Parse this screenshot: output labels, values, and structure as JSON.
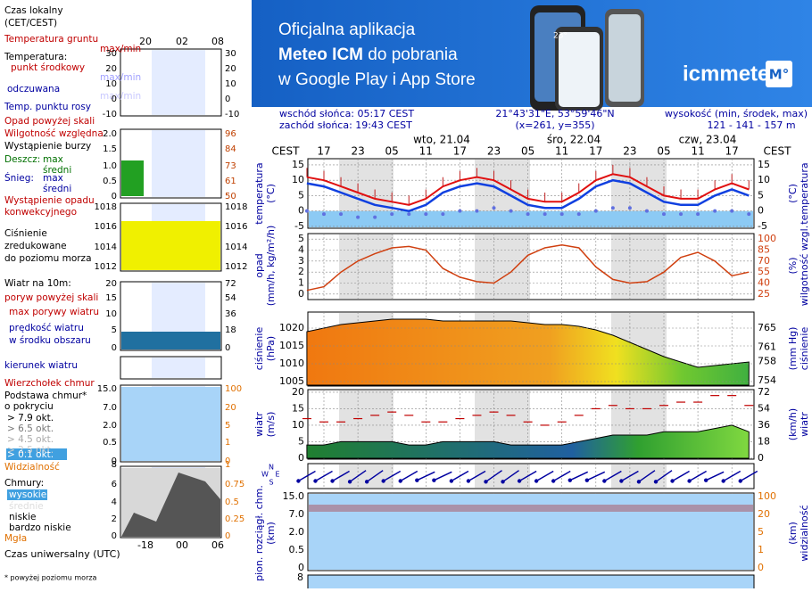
{
  "banner": {
    "line1": "Oficjalna aplikacja",
    "line2_bold": "Meteo ICM",
    "line2_rest": " do pobrania",
    "line3": "w Google Play i App Store",
    "logo": "icmmeteo",
    "badge": "M°",
    "phone_text": "23°"
  },
  "info": {
    "sunrise": "wschód słońca: 05:17 CEST",
    "sunset": "zachód słońca: 19:43 CEST",
    "coords": "21°43'31\"E, 53°59'46\"N",
    "grid": "(x=261, y=355)",
    "elevation_label": "wysokość (min, środek, max)",
    "elevation": "121 - 141 - 157 m"
  },
  "legend": {
    "items": [
      "Czas lokalny",
      "(CET/CEST)",
      "Temperatura gruntu",
      "max/min",
      "Temperatura:",
      "punkt środkowy",
      "max/min",
      "odczuwana",
      "max/min",
      "Temp. punktu rosy",
      "Opad powyżej skali",
      "Wilgotność względna",
      "Wystąpienie burzy",
      "Deszcz:",
      "max",
      "średni",
      "Śnieg:",
      "max",
      "średni",
      "Wystąpienie opadu",
      "konwekcyjnego",
      "Ciśnienie",
      "zredukowane",
      "do poziomu morza",
      "Wiatr na 10m:",
      "poryw powyżej skali",
      "max porywy wiatru",
      "prędkość wiatru",
      "w środku obszaru",
      "kierunek wiatru",
      "Wierzchołek chmur",
      "Podstawa chmur*",
      "o pokryciu",
      "> 7.9 okt.",
      "> 6.5 okt.",
      "> 4.5 okt.",
      "> 2.5 okt.",
      "> 0.1 okt.",
      "Widzialność",
      "Chmury:",
      "wysokie",
      "średnie",
      "niskie",
      "bardzo niskie",
      "Mgła",
      "Czas uniwersalny (UTC)",
      "* powyżej poziomu morza"
    ],
    "top_times": [
      "20",
      "02",
      "08"
    ],
    "bottom_times": [
      "-18",
      "00",
      "06"
    ],
    "axes": [
      {
        "left": [
          "30",
          "20",
          "10",
          "0",
          "-10"
        ],
        "right": [
          "30",
          "20",
          "10",
          "0",
          "-10"
        ]
      },
      {
        "left": [
          "2.0",
          "1.5",
          "1.0",
          "0.5",
          "0"
        ],
        "right": [
          "96",
          "84",
          "73",
          "61",
          "50"
        ]
      },
      {
        "left": [
          "1018",
          "1016",
          "1014",
          "1012"
        ],
        "right": [
          "1018",
          "1016",
          "1014",
          "1012"
        ]
      },
      {
        "left": [
          "20",
          "15",
          "10",
          "5",
          "0"
        ],
        "right": [
          "72",
          "54",
          "36",
          "18",
          "0"
        ]
      },
      {
        "left": [
          "15.0",
          "7.0",
          "2.0",
          "0.5",
          "0"
        ],
        "right": [
          "100",
          "20",
          "5",
          "1",
          "0"
        ]
      },
      {
        "left": [
          "8"
        ],
        "right": [
          "1"
        ]
      },
      {
        "left": [
          "6",
          "4",
          "2",
          "0"
        ],
        "right": [
          "0.75",
          "0.5",
          "0.25",
          "0"
        ]
      }
    ]
  },
  "meteogram": {
    "cest": "CEST",
    "time_labels": [
      "17",
      "23",
      "05",
      "11",
      "17",
      "23",
      "05",
      "11",
      "17",
      "23",
      "05",
      "11",
      "17"
    ],
    "days": [
      "wto, 21.04",
      "śro, 22.04",
      "czw, 23.04"
    ],
    "axis_labels": {
      "temp": [
        "temperatura",
        "(°C)"
      ],
      "temp_r": [
        "(°C)",
        "temperatura"
      ],
      "precip": [
        "opad",
        "(mm/h, kg/m²/h)"
      ],
      "hum": [
        "(%)",
        "wilgotność wzgl."
      ],
      "press": [
        "ciśnienie",
        "(hPa)"
      ],
      "press_r": [
        "(mm Hg)",
        "ciśnienie"
      ],
      "wind": [
        "wiatr",
        "(m/s)"
      ],
      "wind_r": [
        "(km/h)",
        "wiatr"
      ],
      "cloud": [
        "pion. rozciągł. chm.",
        "(km)"
      ],
      "vis": [
        "(km)",
        "widzialność"
      ]
    },
    "compass": [
      "N",
      "W",
      "E",
      "S"
    ],
    "temperature": {
      "ylim": [
        -5.6,
        17
      ],
      "yticks": [
        15,
        10,
        5,
        0,
        -5
      ],
      "max": [
        11,
        10,
        8,
        6,
        4,
        3,
        2,
        4,
        8,
        10,
        11,
        10,
        7,
        4,
        3,
        3,
        6,
        10,
        12,
        11,
        8,
        5,
        4,
        4,
        7,
        9,
        7
      ],
      "mid": [
        9,
        8,
        6,
        4,
        2,
        1,
        0,
        2,
        6,
        8,
        9,
        8,
        5,
        2,
        1,
        1,
        4,
        8,
        10,
        9,
        6,
        3,
        2,
        2,
        5,
        7,
        5
      ],
      "dew": [
        0,
        -1,
        -1,
        -2,
        -2,
        -1,
        -1,
        -1,
        -1,
        0,
        0,
        1,
        0,
        -1,
        -1,
        -1,
        -1,
        0,
        1,
        1,
        0,
        -1,
        -1,
        -1,
        0,
        0,
        -1
      ]
    },
    "precip_humidity": {
      "ylim": [
        -0.5,
        5.5
      ],
      "yticks": [
        5,
        4,
        3,
        2,
        1,
        0
      ],
      "y2lim": [
        17.5,
        107.5
      ],
      "y2ticks": [
        100,
        85,
        70,
        55,
        40,
        25
      ],
      "humidity": [
        30,
        35,
        55,
        70,
        80,
        88,
        90,
        85,
        60,
        48,
        42,
        40,
        55,
        78,
        88,
        92,
        88,
        62,
        45,
        40,
        42,
        55,
        75,
        82,
        70,
        50,
        55
      ]
    },
    "pressure": {
      "ylim": [
        1003.75,
        1024.5
      ],
      "yticks": [
        1020,
        1015,
        1010,
        1005
      ],
      "y2lim": [
        752.9,
        768.4
      ],
      "y2ticks": [
        765,
        761,
        758,
        754
      ],
      "values": [
        1019,
        1020,
        1021,
        1021.5,
        1022,
        1022.5,
        1022.5,
        1022.5,
        1022,
        1022,
        1022,
        1022,
        1022,
        1021.5,
        1021,
        1021,
        1020.5,
        1019.5,
        1018,
        1016,
        1014,
        1012,
        1010.5,
        1009,
        1009.5,
        1010,
        1010.5
      ]
    },
    "wind": {
      "ylim": [
        -0.3,
        20.8
      ],
      "yticks": [
        20,
        15,
        10,
        5,
        0
      ],
      "y2lim": [
        -1.08,
        74.88
      ],
      "y2ticks": [
        72,
        54,
        36,
        18,
        0
      ],
      "speed": [
        4,
        4,
        5,
        5,
        5,
        5,
        4,
        4,
        5,
        5,
        5,
        5,
        4,
        4,
        4,
        4,
        5,
        6,
        7,
        7,
        7,
        8,
        8,
        8,
        9,
        10,
        8
      ],
      "gust": [
        12,
        11,
        11,
        12,
        13,
        14,
        13,
        11,
        11,
        12,
        13,
        14,
        13,
        11,
        10,
        11,
        13,
        15,
        16,
        15,
        15,
        16,
        17,
        17,
        19,
        19,
        16
      ],
      "direction": [
        60,
        60,
        60,
        55,
        55,
        60,
        60,
        65,
        65,
        60,
        60,
        55,
        55,
        60,
        60,
        60,
        65,
        65,
        60,
        60,
        55,
        55,
        60,
        60,
        65,
        60,
        60
      ]
    },
    "clouds": {
      "left": [
        "15.0",
        "7.0",
        "2.0",
        "0.5",
        "0"
      ],
      "right": [
        "100",
        "20",
        "5",
        "1",
        "0"
      ]
    },
    "bottom_label": "8"
  }
}
